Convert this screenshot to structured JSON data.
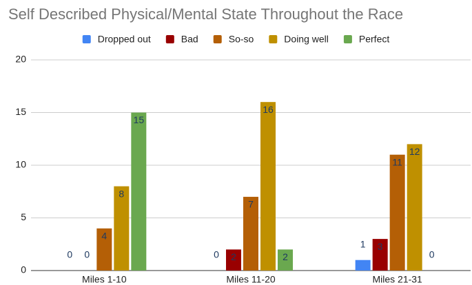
{
  "chart_data": {
    "type": "bar",
    "title": "Self Described Physical/Mental State Throughout the Race",
    "categories": [
      "Miles 1-10",
      "Miles 11-20",
      "Miles 21-31"
    ],
    "series": [
      {
        "name": "Dropped out",
        "color": "#4285f4",
        "values": [
          0,
          0,
          1
        ]
      },
      {
        "name": "Bad",
        "color": "#990000",
        "values": [
          0,
          2,
          3
        ]
      },
      {
        "name": "So-so",
        "color": "#b45f06",
        "values": [
          4,
          7,
          11
        ]
      },
      {
        "name": "Doing well",
        "color": "#bf9000",
        "values": [
          8,
          16,
          12
        ]
      },
      {
        "name": "Perfect",
        "color": "#6aa84f",
        "values": [
          15,
          2,
          0
        ]
      }
    ],
    "ylim": [
      0,
      20
    ],
    "yticks": [
      0,
      5,
      10,
      15,
      20
    ],
    "grid": true,
    "legend": "top"
  }
}
